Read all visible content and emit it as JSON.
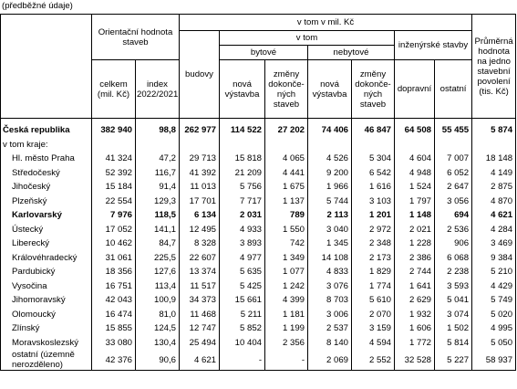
{
  "note": "(předběžné údaje)",
  "header": {
    "orient": "Orientační hodnota staveb",
    "vtom_mil": "v tom v mil. Kč",
    "budovy": "budovy",
    "vtom": "v tom",
    "inz": "inženýrské stavby",
    "bytove": "bytové",
    "nebytove": "nebytové",
    "prumerna": "Průměrná hodnota na jedno stavební povolení (tis. Kč)",
    "cols": [
      "celkem (mil. Kč)",
      "index 2022/2021",
      "nová výstavba",
      "změny dokonče-ných staveb",
      "nová výstavba",
      "změny dokonče-ných staveb",
      "dopravní",
      "ostatní"
    ]
  },
  "rows": [
    {
      "label": "Česká republika",
      "bold": true,
      "values": [
        "382 940",
        "98,8",
        "262 977",
        "114 522",
        "27 202",
        "74 406",
        "46 847",
        "64 508",
        "55 455",
        "5 874"
      ]
    },
    {
      "label": "v tom kraje:"
    },
    {
      "label": "Hl. město Praha",
      "values": [
        "41 324",
        "47,2",
        "29 713",
        "15 818",
        "4 065",
        "4 526",
        "5 304",
        "4 604",
        "7 007",
        "18 148"
      ]
    },
    {
      "label": "Středočeský",
      "values": [
        "52 392",
        "116,7",
        "41 392",
        "21 209",
        "4 441",
        "9 200",
        "6 542",
        "4 948",
        "6 052",
        "4 149"
      ]
    },
    {
      "label": "Jihočeský",
      "values": [
        "15 184",
        "91,4",
        "11 013",
        "5 756",
        "1 675",
        "1 966",
        "1 616",
        "1 524",
        "2 647",
        "2 875"
      ]
    },
    {
      "label": "Plzeňský",
      "values": [
        "22 554",
        "129,3",
        "17 701",
        "7 717",
        "1 137",
        "5 744",
        "3 103",
        "1 797",
        "3 056",
        "4 870"
      ]
    },
    {
      "label": "Karlovarský",
      "bold": true,
      "values": [
        "7 976",
        "118,5",
        "6 134",
        "2 031",
        "789",
        "2 113",
        "1 201",
        "1 148",
        "694",
        "4 621"
      ]
    },
    {
      "label": "Ústecký",
      "values": [
        "17 052",
        "141,1",
        "12 495",
        "4 933",
        "1 550",
        "3 040",
        "2 972",
        "2 021",
        "2 536",
        "4 284"
      ]
    },
    {
      "label": "Liberecký",
      "values": [
        "10 462",
        "84,7",
        "8 328",
        "3 893",
        "742",
        "1 345",
        "2 348",
        "1 228",
        "906",
        "3 469"
      ]
    },
    {
      "label": "Královéhradecký",
      "values": [
        "31 061",
        "225,5",
        "22 607",
        "4 977",
        "1 349",
        "14 108",
        "2 173",
        "2 386",
        "6 068",
        "9 384"
      ]
    },
    {
      "label": "Pardubický",
      "values": [
        "18 356",
        "127,6",
        "13 374",
        "5 635",
        "1 077",
        "4 833",
        "1 829",
        "2 744",
        "2 238",
        "5 210"
      ]
    },
    {
      "label": "Vysočina",
      "values": [
        "16 751",
        "113,4",
        "11 517",
        "5 425",
        "1 242",
        "3 076",
        "1 774",
        "1 641",
        "3 593",
        "4 429"
      ]
    },
    {
      "label": "Jihomoravský",
      "values": [
        "42 043",
        "100,9",
        "34 373",
        "15 661",
        "4 399",
        "8 703",
        "5 610",
        "2 629",
        "5 041",
        "5 749"
      ]
    },
    {
      "label": "Olomoucký",
      "values": [
        "16 474",
        "81,0",
        "11 468",
        "5 211",
        "1 181",
        "3 006",
        "2 070",
        "1 932",
        "3 074",
        "5 020"
      ]
    },
    {
      "label": "Zlínský",
      "values": [
        "15 855",
        "124,5",
        "12 747",
        "5 852",
        "1 199",
        "2 537",
        "3 159",
        "1 606",
        "1 502",
        "4 995"
      ]
    },
    {
      "label": "Moravskoslezský",
      "values": [
        "33 080",
        "130,4",
        "25 494",
        "10 404",
        "2 356",
        "8 140",
        "4 594",
        "1 772",
        "5 814",
        "5 050"
      ]
    },
    {
      "label": "ostatní (územně nerozděleno)",
      "values": [
        "42 376",
        "90,6",
        "4 621",
        "-",
        "-",
        "2 069",
        "2 552",
        "32 528",
        "5 227",
        "58 937"
      ]
    }
  ]
}
